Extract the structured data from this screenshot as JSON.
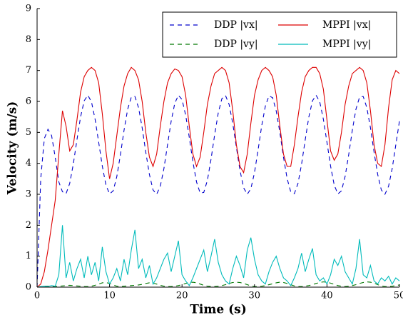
{
  "chart_data": {
    "type": "line",
    "xlabel": "Time (s)",
    "ylabel": "Velocity (m/s)",
    "xlim": [
      0,
      50
    ],
    "xticks": [
      0,
      10,
      20,
      30,
      40,
      50
    ],
    "ylim": [
      0,
      9
    ],
    "yticks": [
      0,
      1,
      2,
      3,
      4,
      5,
      6,
      7,
      8,
      9
    ],
    "grid": false,
    "legend": "upper right",
    "x": [
      0,
      0.5,
      1,
      1.5,
      2,
      2.5,
      3,
      3.5,
      4,
      4.5,
      5,
      5.5,
      6,
      6.5,
      7,
      7.5,
      8,
      8.5,
      9,
      9.5,
      10,
      10.5,
      11,
      11.5,
      12,
      12.5,
      13,
      13.5,
      14,
      14.5,
      15,
      15.5,
      16,
      16.5,
      17,
      17.5,
      18,
      18.5,
      19,
      19.5,
      20,
      20.5,
      21,
      21.5,
      22,
      22.5,
      23,
      23.5,
      24,
      24.5,
      25,
      25.5,
      26,
      26.5,
      27,
      27.5,
      28,
      28.5,
      29,
      29.5,
      30,
      30.5,
      31,
      31.5,
      32,
      32.5,
      33,
      33.5,
      34,
      34.5,
      35,
      35.5,
      36,
      36.5,
      37,
      37.5,
      38,
      38.5,
      39,
      39.5,
      40,
      40.5,
      41,
      41.5,
      42,
      42.5,
      43,
      43.5,
      44,
      44.5,
      45,
      45.5,
      46,
      46.5,
      47,
      47.5,
      48,
      48.5,
      49,
      49.5,
      50
    ],
    "series": [
      {
        "name": "DDP |vx|",
        "color": "#0000cc",
        "linestyle": "dashed",
        "values": [
          0,
          3.5,
          4.8,
          5.1,
          4.9,
          4.2,
          3.4,
          3.08,
          3.02,
          3.35,
          3.98,
          4.76,
          5.5,
          6.02,
          6.2,
          5.99,
          5.43,
          4.68,
          3.91,
          3.3,
          3.01,
          3.11,
          3.57,
          4.28,
          5.07,
          5.75,
          6.14,
          6.16,
          5.8,
          5.15,
          4.36,
          3.64,
          3.14,
          3.0,
          3.26,
          3.83,
          4.6,
          5.36,
          5.94,
          6.2,
          6.06,
          5.56,
          4.84,
          4.05,
          3.4,
          3.04,
          3.06,
          3.45,
          4.13,
          4.92,
          5.63,
          6.09,
          6.19,
          5.9,
          5.29,
          4.52,
          3.77,
          3.21,
          3.0,
          3.18,
          3.7,
          4.44,
          5.22,
          5.85,
          6.18,
          6.12,
          5.69,
          5.0,
          4.2,
          3.51,
          3.08,
          3.02,
          3.35,
          3.98,
          4.76,
          5.5,
          6.02,
          6.2,
          5.99,
          5.43,
          4.68,
          3.91,
          3.3,
          3.01,
          3.11,
          3.57,
          4.28,
          5.07,
          5.75,
          6.14,
          6.16,
          5.8,
          5.15,
          4.36,
          3.64,
          3.14,
          3.0,
          3.26,
          3.83,
          4.6,
          5.36
        ]
      },
      {
        "name": "DDP |vy|",
        "color": "#007700",
        "linestyle": "dashed",
        "values": [
          0,
          0.02,
          0.03,
          0.03,
          0.02,
          0.02,
          0.03,
          0.04,
          0.05,
          0.06,
          0.05,
          0.04,
          0.03,
          0.02,
          0.02,
          0.03,
          0.06,
          0.1,
          0.14,
          0.15,
          0.12,
          0.07,
          0.03,
          0.02,
          0.03,
          0.04,
          0.05,
          0.06,
          0.07,
          0.09,
          0.12,
          0.14,
          0.13,
          0.1,
          0.06,
          0.03,
          0.02,
          0.02,
          0.03,
          0.05,
          0.08,
          0.12,
          0.15,
          0.16,
          0.14,
          0.1,
          0.06,
          0.03,
          0.02,
          0.02,
          0.03,
          0.05,
          0.08,
          0.12,
          0.15,
          0.16,
          0.15,
          0.12,
          0.08,
          0.04,
          0.02,
          0.02,
          0.03,
          0.05,
          0.08,
          0.11,
          0.14,
          0.16,
          0.15,
          0.12,
          0.08,
          0.04,
          0.02,
          0.02,
          0.03,
          0.05,
          0.08,
          0.12,
          0.15,
          0.17,
          0.16,
          0.13,
          0.09,
          0.05,
          0.03,
          0.02,
          0.03,
          0.05,
          0.08,
          0.12,
          0.15,
          0.17,
          0.16,
          0.13,
          0.08,
          0.04,
          0.02,
          0.02,
          0.03,
          0.05,
          0.07
        ]
      },
      {
        "name": "MPPI |vx|",
        "color": "#dd0000",
        "linestyle": "solid",
        "values": [
          0,
          0.1,
          0.5,
          1.2,
          2.0,
          2.8,
          4.3,
          5.7,
          5.2,
          4.4,
          4.6,
          5.4,
          6.3,
          6.8,
          7.0,
          7.1,
          7.0,
          6.6,
          5.6,
          4.4,
          3.5,
          4.0,
          4.9,
          5.8,
          6.5,
          6.9,
          7.1,
          7.0,
          6.7,
          6.0,
          5.0,
          4.2,
          3.9,
          4.3,
          5.2,
          6.0,
          6.6,
          6.9,
          7.05,
          7.0,
          6.8,
          6.2,
          5.2,
          4.3,
          3.9,
          4.2,
          5.0,
          5.9,
          6.5,
          6.9,
          7.0,
          7.1,
          7.0,
          6.6,
          5.7,
          4.6,
          3.9,
          3.7,
          4.3,
          5.3,
          6.2,
          6.7,
          7.0,
          7.1,
          7.0,
          6.8,
          6.2,
          5.2,
          4.3,
          3.9,
          3.9,
          4.6,
          5.5,
          6.3,
          6.8,
          7.0,
          7.1,
          7.1,
          6.9,
          6.4,
          5.4,
          4.4,
          4.1,
          4.3,
          5.0,
          5.9,
          6.5,
          6.9,
          7.0,
          7.1,
          7.0,
          6.6,
          5.7,
          4.6,
          4.0,
          3.9,
          4.6,
          5.8,
          6.7,
          7.0,
          6.9
        ]
      },
      {
        "name": "MPPI |vy|",
        "color": "#00bbbb",
        "linestyle": "solid",
        "values": [
          0,
          0.02,
          0.03,
          0.02,
          0.05,
          0.03,
          0.4,
          2.0,
          0.3,
          0.8,
          0.2,
          0.6,
          0.9,
          0.3,
          1.0,
          0.4,
          0.8,
          0.2,
          1.3,
          0.5,
          0.1,
          0.3,
          0.6,
          0.2,
          0.9,
          0.4,
          1.2,
          1.85,
          0.6,
          0.9,
          0.3,
          0.7,
          0.1,
          0.3,
          0.6,
          0.9,
          1.1,
          0.5,
          1.0,
          1.5,
          0.4,
          0.2,
          0.05,
          0.3,
          0.6,
          0.9,
          1.2,
          0.5,
          1.0,
          1.55,
          0.8,
          0.4,
          0.2,
          0.1,
          0.6,
          1.0,
          0.7,
          0.3,
          1.2,
          1.6,
          0.9,
          0.4,
          0.2,
          0.1,
          0.5,
          0.8,
          1.0,
          0.6,
          0.3,
          0.2,
          0.05,
          0.3,
          0.6,
          1.1,
          0.5,
          0.9,
          1.25,
          0.4,
          0.2,
          0.3,
          0.1,
          0.4,
          0.9,
          0.7,
          1.0,
          0.5,
          0.3,
          0.1,
          0.6,
          1.55,
          0.4,
          0.3,
          0.7,
          0.2,
          0.1,
          0.3,
          0.2,
          0.35,
          0.1,
          0.3,
          0.2
        ]
      }
    ]
  }
}
